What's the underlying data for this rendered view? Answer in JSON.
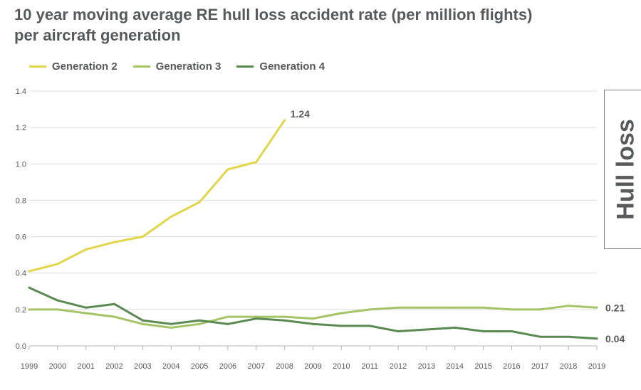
{
  "title_line1": "10 year moving average RE hull loss accident rate (per million flights)",
  "title_line2": "per aircraft generation",
  "side_label": "Hull loss",
  "colors": {
    "generation_2": "#e2d648",
    "generation_3": "#a5c466",
    "generation_4": "#5a8a52",
    "grid": "#dcdcdc",
    "text": "#58595b"
  },
  "chart_data": {
    "type": "line",
    "title": "10 year moving average RE hull loss accident rate (per million flights) per aircraft generation",
    "xlabel": "",
    "ylabel": "",
    "x": [
      "1999",
      "2000",
      "2001",
      "2002",
      "2003",
      "2004",
      "2005",
      "2006",
      "2007",
      "2008",
      "2009",
      "2010",
      "2011",
      "2012",
      "2013",
      "2014",
      "2015",
      "2016",
      "2017",
      "2018",
      "2019"
    ],
    "ylim": [
      0,
      1.4
    ],
    "yticks": [
      "0.0",
      "0.2",
      "0.4",
      "0.6",
      "0.8",
      "1.0",
      "1.2",
      "1.4"
    ],
    "grid": true,
    "legend_position": "top-left",
    "series": [
      {
        "name": "Generation 2",
        "values": [
          0.41,
          0.45,
          0.53,
          0.57,
          0.6,
          0.71,
          0.79,
          0.97,
          1.01,
          1.24,
          null,
          null,
          null,
          null,
          null,
          null,
          null,
          null,
          null,
          null,
          null
        ],
        "end_label": "1.24"
      },
      {
        "name": "Generation 3",
        "values": [
          0.2,
          0.2,
          0.18,
          0.16,
          0.12,
          0.1,
          0.12,
          0.16,
          0.16,
          0.16,
          0.15,
          0.18,
          0.2,
          0.21,
          0.21,
          0.21,
          0.21,
          0.2,
          0.2,
          0.22,
          0.21
        ],
        "end_label": "0.21"
      },
      {
        "name": "Generation 4",
        "values": [
          0.32,
          0.25,
          0.21,
          0.23,
          0.14,
          0.12,
          0.14,
          0.12,
          0.15,
          0.14,
          0.12,
          0.11,
          0.11,
          0.08,
          0.09,
          0.1,
          0.08,
          0.08,
          0.05,
          0.05,
          0.04
        ],
        "end_label": "0.04"
      }
    ]
  }
}
